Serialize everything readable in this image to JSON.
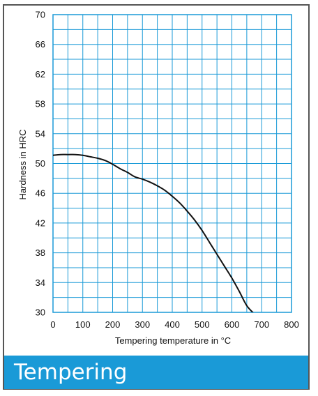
{
  "caption": {
    "text": "Tempering"
  },
  "colors": {
    "grid": "#1a9ad7",
    "curve": "#111111",
    "caption_bg": "#1a9ad7",
    "caption_text": "#ffffff",
    "frame": "#555555"
  },
  "chart_data": {
    "type": "line",
    "title": "",
    "xlabel": "Tempering temperature in °C",
    "ylabel": "Hardness in HRC",
    "xlim": [
      0,
      800
    ],
    "ylim": [
      30,
      70
    ],
    "x_ticks": [
      0,
      100,
      200,
      300,
      400,
      500,
      600,
      700,
      800
    ],
    "y_ticks": [
      30,
      34,
      38,
      42,
      46,
      50,
      54,
      58,
      62,
      66,
      70
    ],
    "grid": true,
    "x_minor_step": 50,
    "y_minor_step": 2,
    "series": [
      {
        "x": [
          0,
          25,
          50,
          75,
          100,
          125,
          150,
          175,
          200,
          225,
          250,
          275,
          300,
          325,
          350,
          375,
          400,
          425,
          450,
          475,
          500,
          525,
          550,
          575,
          600,
          625,
          650,
          675
        ],
        "y": [
          51.1,
          51.2,
          51.2,
          51.2,
          51.1,
          50.9,
          50.7,
          50.4,
          49.9,
          49.3,
          48.8,
          48.2,
          47.9,
          47.5,
          47.0,
          46.4,
          45.6,
          44.7,
          43.6,
          42.4,
          41.0,
          39.4,
          37.8,
          36.2,
          34.6,
          32.8,
          30.9,
          29.8
        ]
      }
    ]
  }
}
